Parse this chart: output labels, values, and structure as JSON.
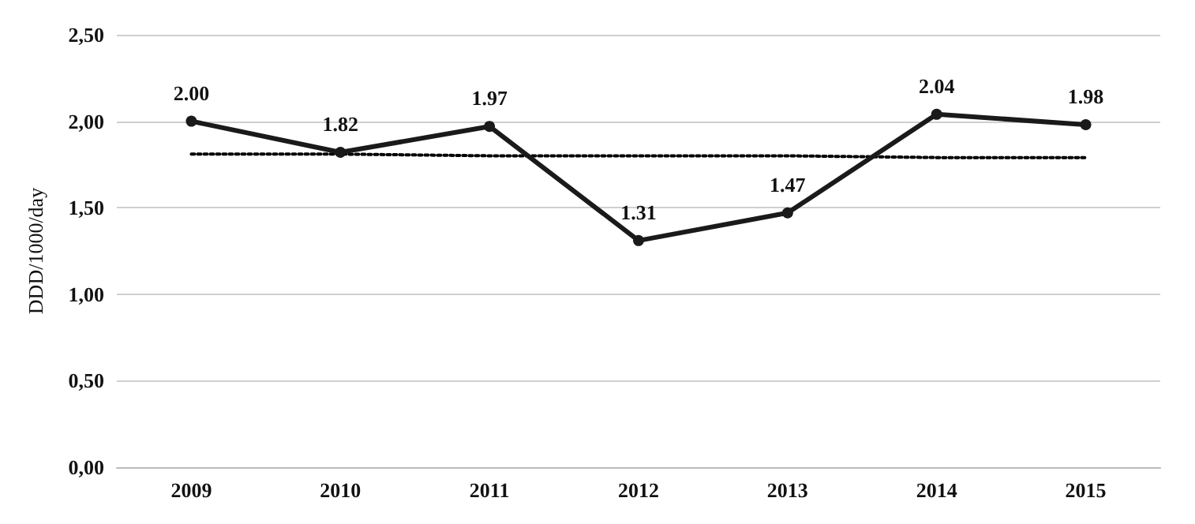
{
  "chart_data": {
    "type": "line",
    "ylabel": "DDD/1000/day",
    "categories": [
      "2009",
      "2010",
      "2011",
      "2012",
      "2013",
      "2014",
      "2015"
    ],
    "series": [
      {
        "color": "#1a1a1a",
        "values": [
          2.0,
          1.82,
          1.97,
          1.31,
          1.47,
          2.04,
          1.98
        ],
        "value_labels": [
          "2.00",
          "1.82",
          "1.97",
          "1.31",
          "1.47",
          "2.04",
          "1.98"
        ],
        "marker": "circle",
        "line_style": "solid"
      },
      {
        "type": "line",
        "color": "#000000",
        "values": [
          1.81,
          1.81,
          1.8,
          1.8,
          1.8,
          1.79,
          1.79
        ],
        "marker": "none",
        "line_style": "dotted"
      }
    ],
    "ylim": [
      0,
      2.5
    ],
    "yticks": [
      {
        "value": 0,
        "label": "0,00"
      },
      {
        "value": 0.5,
        "label": "0,50"
      },
      {
        "value": 1,
        "label": "1,00"
      },
      {
        "value": 1.5,
        "label": "1,50"
      },
      {
        "value": 2,
        "label": "2,00"
      },
      {
        "value": 2.5,
        "label": "2,50"
      }
    ],
    "grid": "y"
  }
}
